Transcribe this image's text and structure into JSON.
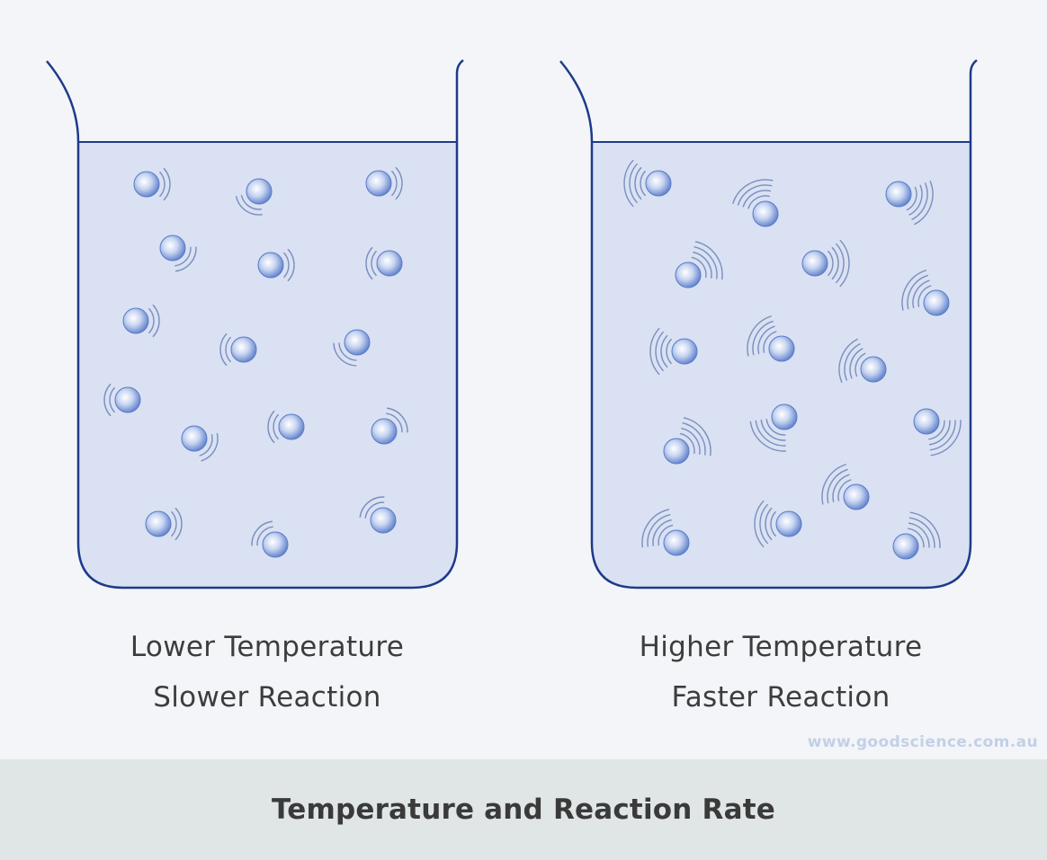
{
  "colors": {
    "background": "#f3f5f8",
    "liquid": "#d9e1f3",
    "beaker_outline": "#1e3a8a",
    "particle_center": "#ffffff",
    "particle_edge": "#5a7cc8",
    "motion_lines": "#7a8fbd",
    "footer_background": "#e0e5e6",
    "watermark": "#c3d0e6"
  },
  "beakers": [
    {
      "caption_line1": "Lower Temperature",
      "caption_line2": "Slower Reaction",
      "motion_arcs": 2
    },
    {
      "caption_line1": "Higher Temperature",
      "caption_line2": "Faster Reaction",
      "motion_arcs": 4
    }
  ],
  "watermark": "www.goodscience.com.au",
  "footer": {
    "title": "Temperature and Reaction Rate"
  }
}
